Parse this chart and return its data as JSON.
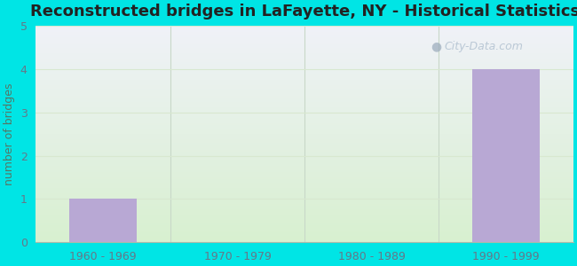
{
  "title": "Reconstructed bridges in LaFayette, NY - Historical Statistics",
  "categories": [
    "1960 - 1969",
    "1970 - 1979",
    "1980 - 1989",
    "1990 - 1999"
  ],
  "values": [
    1,
    0,
    0,
    4
  ],
  "bar_color": "#b8a8d4",
  "background_outer": "#00e5e5",
  "background_top": "#f0f0f8",
  "background_bottom": "#d8f0d0",
  "ylabel": "number of bridges",
  "ylim": [
    0,
    5
  ],
  "yticks": [
    0,
    1,
    2,
    3,
    4,
    5
  ],
  "title_fontsize": 13,
  "axis_label_color": "#557766",
  "tick_label_color": "#667788",
  "watermark": "City-Data.com",
  "grid_color": "#e0e8e0",
  "separator_color": "#c8d8c8"
}
